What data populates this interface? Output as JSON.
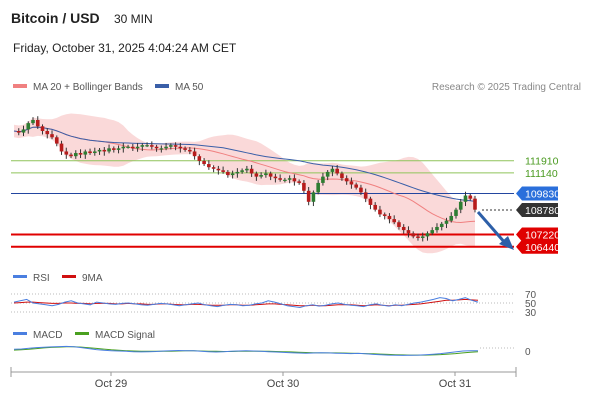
{
  "header": {
    "title": "Bitcoin / USD",
    "interval": "30 MIN",
    "datetime": "Friday, October 31, 2025 4:04:24 AM CET"
  },
  "colors": {
    "candle_up": "#2e7d32",
    "candle_down": "#b71c1c",
    "bollinger_fill": "#f8cccc",
    "ma20": "#f08080",
    "ma50": "#3a5fa8",
    "resistance": "#8fc45a",
    "support": "#e00000",
    "pivot": "#2346a0",
    "last_price_tag": "#333333",
    "pivot_tag": "#2a6fdb",
    "arrow": "#2d5fa8",
    "rsi": "#4a7fe0",
    "rsi_ma": "#d01010",
    "macd": "#4a7fe0",
    "macd_signal": "#4aa020"
  },
  "chart_data": [
    {
      "type": "candlestick",
      "legend": [
        {
          "label": "MA 20 + Bollinger Bands",
          "color": "#f08080"
        },
        {
          "label": "MA 50",
          "color": "#3a5fa8"
        }
      ],
      "credit": "Research © 2025 Trading Central",
      "x_ticks": [
        "Oct 29",
        "Oct 30",
        "Oct 31"
      ],
      "levels": [
        {
          "value": "111910",
          "kind": "resistance"
        },
        {
          "value": "111140",
          "kind": "resistance"
        },
        {
          "value": "109830",
          "kind": "pivot"
        },
        {
          "value": "108780",
          "kind": "last"
        },
        {
          "value": "107220",
          "kind": "support"
        },
        {
          "value": "106440",
          "kind": "support"
        }
      ],
      "outlook": "bearish",
      "price_path": [
        113800,
        113700,
        113900,
        114300,
        114500,
        114100,
        113800,
        113600,
        113400,
        113000,
        112500,
        112300,
        112200,
        112400,
        112300,
        112500,
        112400,
        112500,
        112600,
        112500,
        112700,
        112600,
        112700,
        112800,
        112800,
        112700,
        112800,
        112900,
        112900,
        112800,
        112700,
        112700,
        112800,
        112900,
        112800,
        112700,
        112600,
        112500,
        112200,
        111900,
        111700,
        111500,
        111400,
        111300,
        111200,
        111000,
        111100,
        111200,
        111300,
        111400,
        111100,
        110900,
        111000,
        111100,
        110900,
        110800,
        110700,
        110700,
        110800,
        110600,
        110500,
        110000,
        109300,
        109900,
        110500,
        110900,
        111200,
        111400,
        111100,
        110800,
        110600,
        110400,
        110200,
        109900,
        109500,
        109100,
        108800,
        108500,
        108400,
        108200,
        108000,
        107700,
        107500,
        107300,
        107100,
        107000,
        107100,
        107300,
        107500,
        107700,
        107900,
        108100,
        108400,
        108800,
        109300,
        109700,
        109500,
        108800
      ]
    },
    {
      "type": "line",
      "name": "RSI panel",
      "legend": [
        {
          "label": "RSI",
          "color": "#4a7fe0"
        },
        {
          "label": "9MA",
          "color": "#d01010"
        }
      ],
      "levels": [
        "70",
        "50",
        "30"
      ],
      "series": [
        {
          "name": "RSI",
          "values": [
            52,
            55,
            58,
            50,
            48,
            46,
            44,
            47,
            52,
            55,
            50,
            48,
            46,
            52,
            50,
            48,
            47,
            49,
            50,
            48,
            46,
            45,
            47,
            49,
            48,
            46,
            44,
            46,
            48,
            50,
            46,
            44,
            42,
            45,
            47,
            46,
            44,
            45,
            48,
            50,
            55,
            52,
            48,
            44,
            42,
            40,
            44,
            46,
            43,
            45,
            48,
            50,
            47,
            45,
            44,
            42,
            46,
            48,
            45,
            43,
            46,
            44,
            47,
            50,
            52,
            55,
            58,
            62,
            60,
            55,
            58,
            62,
            56,
            52
          ]
        },
        {
          "name": "9MA",
          "values": [
            50,
            51,
            52,
            52,
            51,
            50,
            49,
            49,
            50,
            50,
            49,
            49,
            48,
            49,
            49,
            49,
            48,
            48,
            49,
            48,
            48,
            47,
            47,
            48,
            48,
            47,
            46,
            46,
            47,
            47,
            46,
            45,
            45,
            45,
            46,
            46,
            45,
            45,
            46,
            47,
            48,
            48,
            47,
            46,
            45,
            44,
            44,
            45,
            44,
            44,
            45,
            46,
            46,
            46,
            45,
            44,
            45,
            46,
            45,
            44,
            45,
            45,
            46,
            47,
            48,
            50,
            52,
            54,
            56,
            56,
            57,
            58,
            57,
            56
          ]
        }
      ]
    },
    {
      "type": "line",
      "name": "MACD panel",
      "legend": [
        {
          "label": "MACD",
          "color": "#4a7fe0"
        },
        {
          "label": "MACD Signal",
          "color": "#4aa020"
        }
      ],
      "levels": [
        "0"
      ],
      "series": [
        {
          "name": "MACD",
          "values": [
            10,
            12,
            16,
            20,
            22,
            24,
            26,
            27,
            25,
            20,
            14,
            8,
            4,
            2,
            0,
            -2,
            -4,
            -5,
            -4,
            -3,
            0,
            2,
            3,
            2,
            1,
            -2,
            -4,
            -6,
            -4,
            -2,
            0,
            1,
            0,
            -2,
            -4,
            -6,
            -8,
            -10,
            -12,
            -13,
            -12,
            -10,
            -11,
            -13,
            -14,
            -15,
            -14,
            -16,
            -20,
            -22,
            -24,
            -25,
            -26,
            -25,
            -24,
            -22,
            -19,
            -15,
            -10,
            -5,
            0,
            2,
            1
          ]
        },
        {
          "name": "MACD Signal",
          "values": [
            5,
            7,
            10,
            14,
            18,
            21,
            23,
            25,
            25,
            23,
            19,
            15,
            11,
            7,
            4,
            2,
            0,
            -1,
            -2,
            -2,
            -2,
            -1,
            0,
            1,
            1,
            0,
            -1,
            -2,
            -3,
            -3,
            -2,
            -1,
            -1,
            -1,
            -2,
            -3,
            -4,
            -5,
            -7,
            -9,
            -10,
            -11,
            -11,
            -11,
            -12,
            -13,
            -14,
            -15,
            -16,
            -18,
            -20,
            -22,
            -23,
            -24,
            -24,
            -24,
            -23,
            -21,
            -18,
            -15,
            -11,
            -7,
            -4
          ]
        }
      ]
    }
  ]
}
